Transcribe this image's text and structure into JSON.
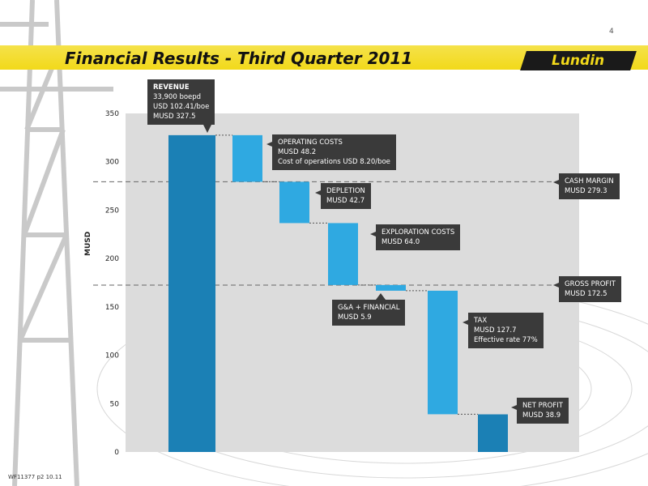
{
  "page_number": "4",
  "title": "Financial Results - Third Quarter 2011",
  "logo_text": "Lundin",
  "footer": "WF11377 p2 10.11",
  "colors": {
    "banner": "#f2d91a",
    "revenue_bar": "#1b80b5",
    "cost_bar": "#2fa9e1",
    "net_bar": "#1b80b5",
    "callout": "#3a3a3a"
  },
  "chart_data": {
    "type": "waterfall",
    "ylabel": "MUSD",
    "ylim": [
      0,
      350
    ],
    "yticks": [
      0,
      50,
      100,
      150,
      200,
      250,
      300,
      350
    ],
    "grid": false,
    "steps": [
      {
        "name": "Revenue",
        "start": 0,
        "end": 327.5,
        "kind": "total"
      },
      {
        "name": "Operating costs",
        "start": 327.5,
        "end": 279.3,
        "kind": "decrease"
      },
      {
        "name": "Depletion",
        "start": 279.3,
        "end": 236.6,
        "kind": "decrease"
      },
      {
        "name": "Exploration costs",
        "start": 236.6,
        "end": 172.6,
        "kind": "decrease"
      },
      {
        "name": "G&A + Financial",
        "start": 172.6,
        "end": 166.7,
        "kind": "decrease"
      },
      {
        "name": "Tax",
        "start": 166.7,
        "end": 39.0,
        "kind": "decrease"
      },
      {
        "name": "Net profit",
        "start": 0,
        "end": 38.9,
        "kind": "total"
      }
    ],
    "reference_lines": [
      {
        "label": "Cash margin",
        "value": 279.3
      },
      {
        "label": "Gross profit",
        "value": 172.5
      }
    ]
  },
  "callouts": {
    "revenue": [
      "REVENUE",
      "33,900 boepd",
      "USD 102.41/boe",
      "MUSD 327.5"
    ],
    "operating": [
      "OPERATING COSTS",
      "MUSD 48.2",
      "Cost of operations USD 8.20/boe"
    ],
    "depletion": [
      "DEPLETION",
      "MUSD 42.7"
    ],
    "exploration": [
      "EXPLORATION COSTS",
      "MUSD 64.0"
    ],
    "ga": [
      "G&A + FINANCIAL",
      "MUSD 5.9"
    ],
    "tax": [
      "TAX",
      "MUSD 127.7",
      "Effective rate 77%"
    ],
    "net": [
      "NET PROFIT",
      "MUSD 38.9"
    ],
    "cash_margin": [
      "CASH MARGIN",
      "MUSD 279.3"
    ],
    "gross_profit": [
      "GROSS PROFIT",
      "MUSD 172.5"
    ]
  }
}
